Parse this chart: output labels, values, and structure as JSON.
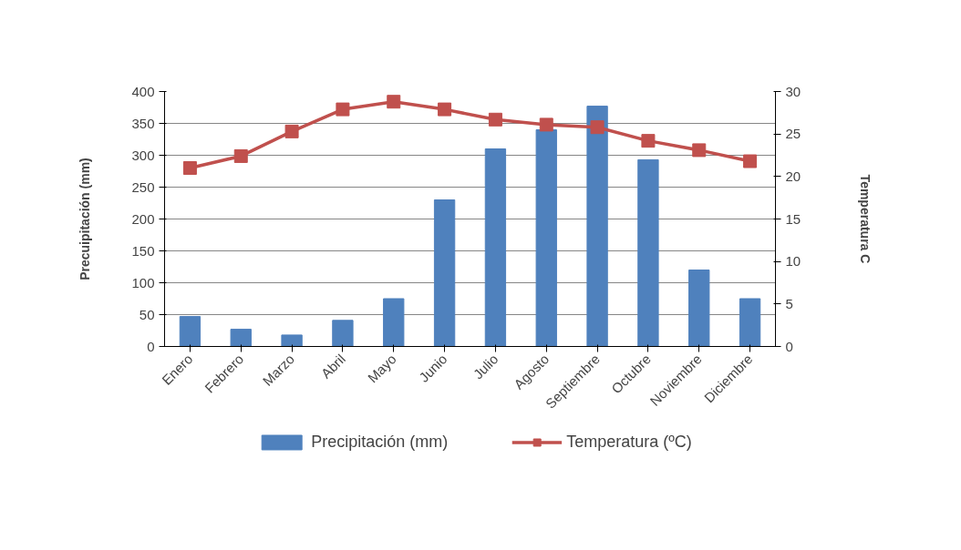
{
  "chart_data": {
    "type": "bar",
    "categories": [
      "Enero",
      "Febrero",
      "Marzo",
      "Abril",
      "Mayo",
      "Junio",
      "Julio",
      "Agosto",
      "Septiembre",
      "Octubre",
      "Noviembre",
      "Diciembre"
    ],
    "ylabel": "Precuipitación (mm)",
    "y2label": "Temperatura C",
    "series": [
      {
        "name": "Precipitación (mm)",
        "color": "#4f81bd",
        "values": [
          47,
          27,
          18,
          41,
          75,
          230,
          310,
          340,
          377,
          293,
          120,
          75
        ]
      },
      {
        "name": "Temperatura (ºC)",
        "color": "#c0504d",
        "type": "line",
        "axis": "y2",
        "marker": "square",
        "values": [
          21.0,
          22.4,
          25.3,
          27.9,
          28.8,
          27.9,
          26.7,
          26.1,
          25.8,
          24.2,
          23.1,
          21.8
        ]
      }
    ],
    "ylim": [
      0,
      400
    ],
    "yticks": [
      0,
      50,
      100,
      150,
      200,
      250,
      300,
      350,
      400
    ],
    "y2lim": [
      0,
      30
    ],
    "y2ticks": [
      0,
      5,
      10,
      15,
      20,
      25,
      30
    ],
    "grid": "y",
    "legend": "bottom"
  }
}
